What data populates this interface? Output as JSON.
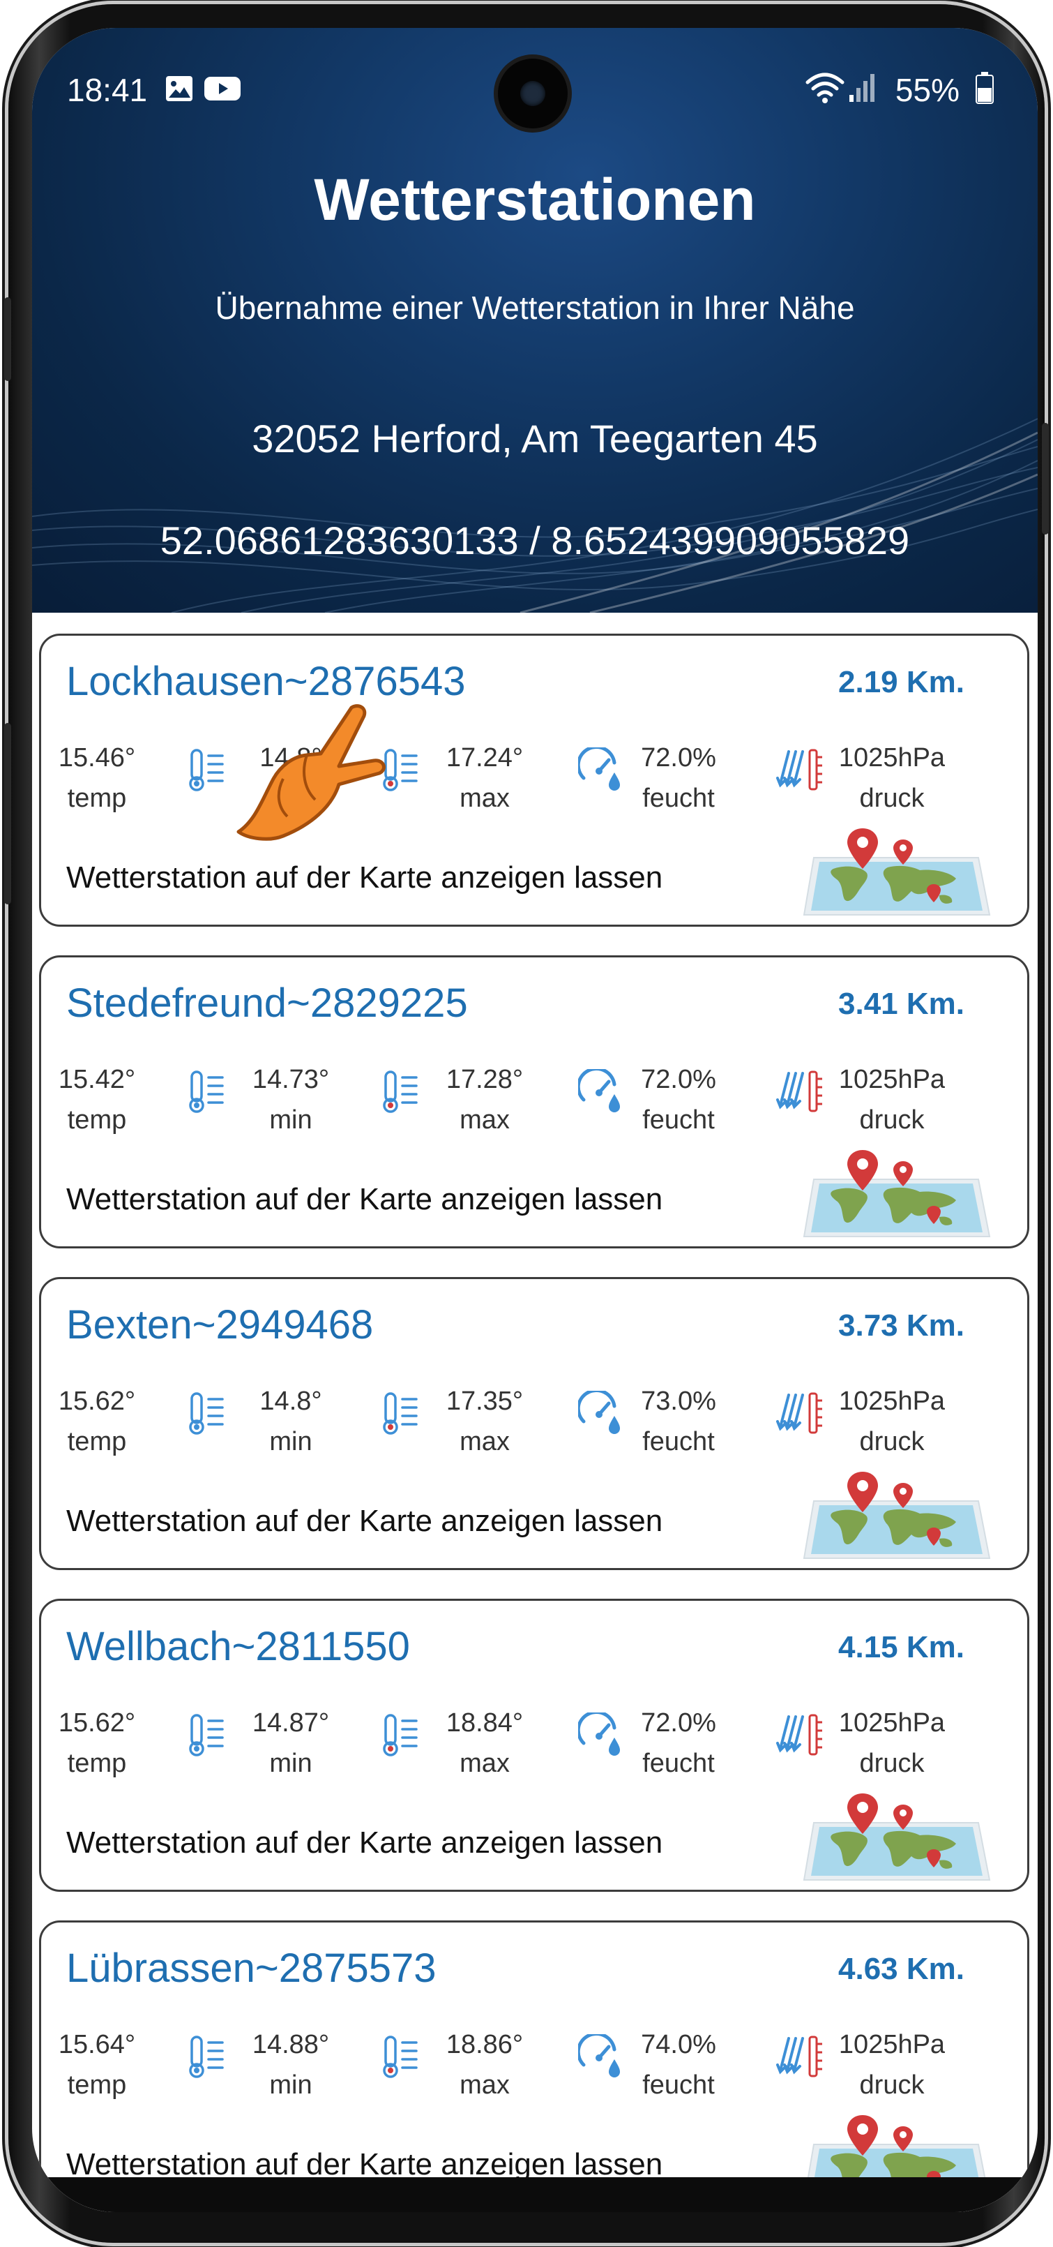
{
  "status": {
    "time": "18:41",
    "battery": "55%",
    "left_icons": [
      "image-icon",
      "youtube-icon"
    ],
    "right_icons": [
      "wifi-icon",
      "signal-icon",
      "battery-icon"
    ]
  },
  "header": {
    "title": "Wetterstationen",
    "subtitle": "Übernahme einer Wetterstation in Ihrer Nähe",
    "address": "32052 Herford, Am Teegarten 45",
    "coordinates": "52.06861283630133 / 8.652439909055829"
  },
  "colors": {
    "accent": "#1e6eb0",
    "header_bg": "#0b2748",
    "icon_blue": "#3d8fd6",
    "icon_red": "#d23a3a"
  },
  "stations": [
    {
      "name": "Lockhausen~2876543",
      "distance": "2.19 Km.",
      "temp": "15.46°",
      "temp_label": "temp",
      "min": "14.8°",
      "min_label": "min",
      "max": "17.24°",
      "max_label": "max",
      "humidity": "72.0%",
      "humidity_label": "feucht",
      "pressure": "1025hPa",
      "pressure_label": "druck",
      "map_link": "Wetterstation auf der Karte anzeigen lassen"
    },
    {
      "name": "Stedefreund~2829225",
      "distance": "3.41 Km.",
      "temp": "15.42°",
      "temp_label": "temp",
      "min": "14.73°",
      "min_label": "min",
      "max": "17.28°",
      "max_label": "max",
      "humidity": "72.0%",
      "humidity_label": "feucht",
      "pressure": "1025hPa",
      "pressure_label": "druck",
      "map_link": "Wetterstation auf der Karte anzeigen lassen"
    },
    {
      "name": "Bexten~2949468",
      "distance": "3.73 Km.",
      "temp": "15.62°",
      "temp_label": "temp",
      "min": "14.8°",
      "min_label": "min",
      "max": "17.35°",
      "max_label": "max",
      "humidity": "73.0%",
      "humidity_label": "feucht",
      "pressure": "1025hPa",
      "pressure_label": "druck",
      "map_link": "Wetterstation auf der Karte anzeigen lassen"
    },
    {
      "name": "Wellbach~2811550",
      "distance": "4.15 Km.",
      "temp": "15.62°",
      "temp_label": "temp",
      "min": "14.87°",
      "min_label": "min",
      "max": "18.84°",
      "max_label": "max",
      "humidity": "72.0%",
      "humidity_label": "feucht",
      "pressure": "1025hPa",
      "pressure_label": "druck",
      "map_link": "Wetterstation auf der Karte anzeigen lassen"
    },
    {
      "name": "Lübrassen~2875573",
      "distance": "4.63 Km.",
      "temp": "15.64°",
      "temp_label": "temp",
      "min": "14.88°",
      "min_label": "min",
      "max": "18.86°",
      "max_label": "max",
      "humidity": "74.0%",
      "humidity_label": "feucht",
      "pressure": "1025hPa",
      "pressure_label": "druck",
      "map_link": "Wetterstation auf der Karte anzeigen lassen"
    }
  ]
}
